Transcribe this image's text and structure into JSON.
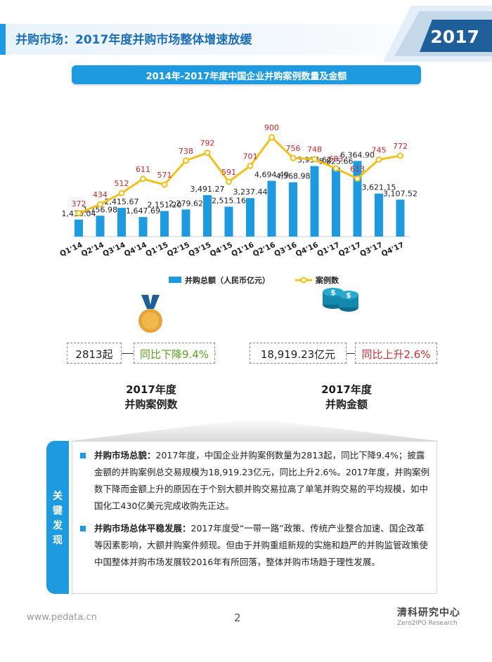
{
  "header": {
    "title": "并购市场：2017年度并购市场整体增速放缓",
    "year_tag": "2017"
  },
  "chart_banner": "2014年-2017年度中国企业并购案例数量及金额",
  "chart_data": {
    "type": "bar",
    "categories": [
      "Q1'14",
      "Q2'14",
      "Q3'14",
      "Q4'14",
      "Q1'15",
      "Q2'15",
      "Q3'15",
      "Q4'15",
      "Q1'16",
      "Q2'16",
      "Q3'16",
      "Q4'16",
      "Q1'17",
      "Q2'17",
      "Q3'17",
      "Q4'17"
    ],
    "series": [
      {
        "name": "并购总额（人民币亿元）",
        "type": "bar",
        "color": "#1e9be0",
        "values": [
          1430.04,
          1756.98,
          2415.67,
          1647.69,
          2151.2,
          2279.62,
          3491.27,
          2515.16,
          3237.44,
          4694.49,
          4568.98,
          5934.62,
          5825.66,
          6364.9,
          3621.15,
          3107.52
        ],
        "labels": [
          "1,430.04",
          "1,756.98",
          "2,415.67",
          "1,647.69",
          "2,151.20",
          "2,279.62",
          "3,491.27",
          "2,515.16",
          "3,237.44",
          "4,694.49",
          "4,568.98",
          "5,934.62",
          "5,825.66",
          "6,364.90",
          "3,621.15",
          "3,107.52"
        ]
      },
      {
        "name": "案例数",
        "type": "line",
        "color": "#f2c01a",
        "label_color": "#c62828",
        "values": [
          372,
          434,
          512,
          611,
          571,
          738,
          792,
          591,
          701,
          900,
          756,
          748,
          683,
          613,
          745,
          772
        ],
        "labels": [
          "372",
          "434",
          "512",
          "611",
          "571",
          "738",
          "792",
          "591",
          "701",
          "900",
          "756",
          "748",
          "683",
          "613",
          "745",
          "772"
        ]
      }
    ],
    "ylim_bar": [
      0,
      7000
    ],
    "ylim_line": [
      0,
      1000
    ],
    "legend": "bottom"
  },
  "kpi": {
    "deals": {
      "value": "2813起",
      "change": "同比下降9.4%",
      "caption_line1": "2017年度",
      "caption_line2": "并购案例数"
    },
    "amount": {
      "value": "18,919.23亿元",
      "change": "同比上升2.6%",
      "caption_line1": "2017年度",
      "caption_line2": "并购金额"
    }
  },
  "findings": {
    "side_label": [
      "关",
      "键",
      "发",
      "现"
    ],
    "items": [
      {
        "head": "并购市场总貌：",
        "text": "2017年度，中国企业并购案例数量为2813起，同比下降9.4%；披露金额的并购案例总交易规模为18,919.23亿元，同比上升2.6%。2017年度，并购案例数下降而金额上升的原因在于个别大额并购交易拉高了单笔并购交易的平均规模，如中国化工430亿美元完成收购先正达。"
      },
      {
        "head": "并购市场总体平稳发展：",
        "text": "2017年度受“一带一路”政策、传统产业整合加速、国企改革等因素影响，大额并购案件频现。但由于并购重组新规的实施和趋严的并购监管政策使中国整体并购市场发展较2016年有所回落，整体并购市场趋于理性发展。"
      }
    ]
  },
  "footer": {
    "url": "www.pedata.cn",
    "page": "2",
    "brand": "清科研究中心",
    "brand_sub": "Zero2IPO Research"
  }
}
